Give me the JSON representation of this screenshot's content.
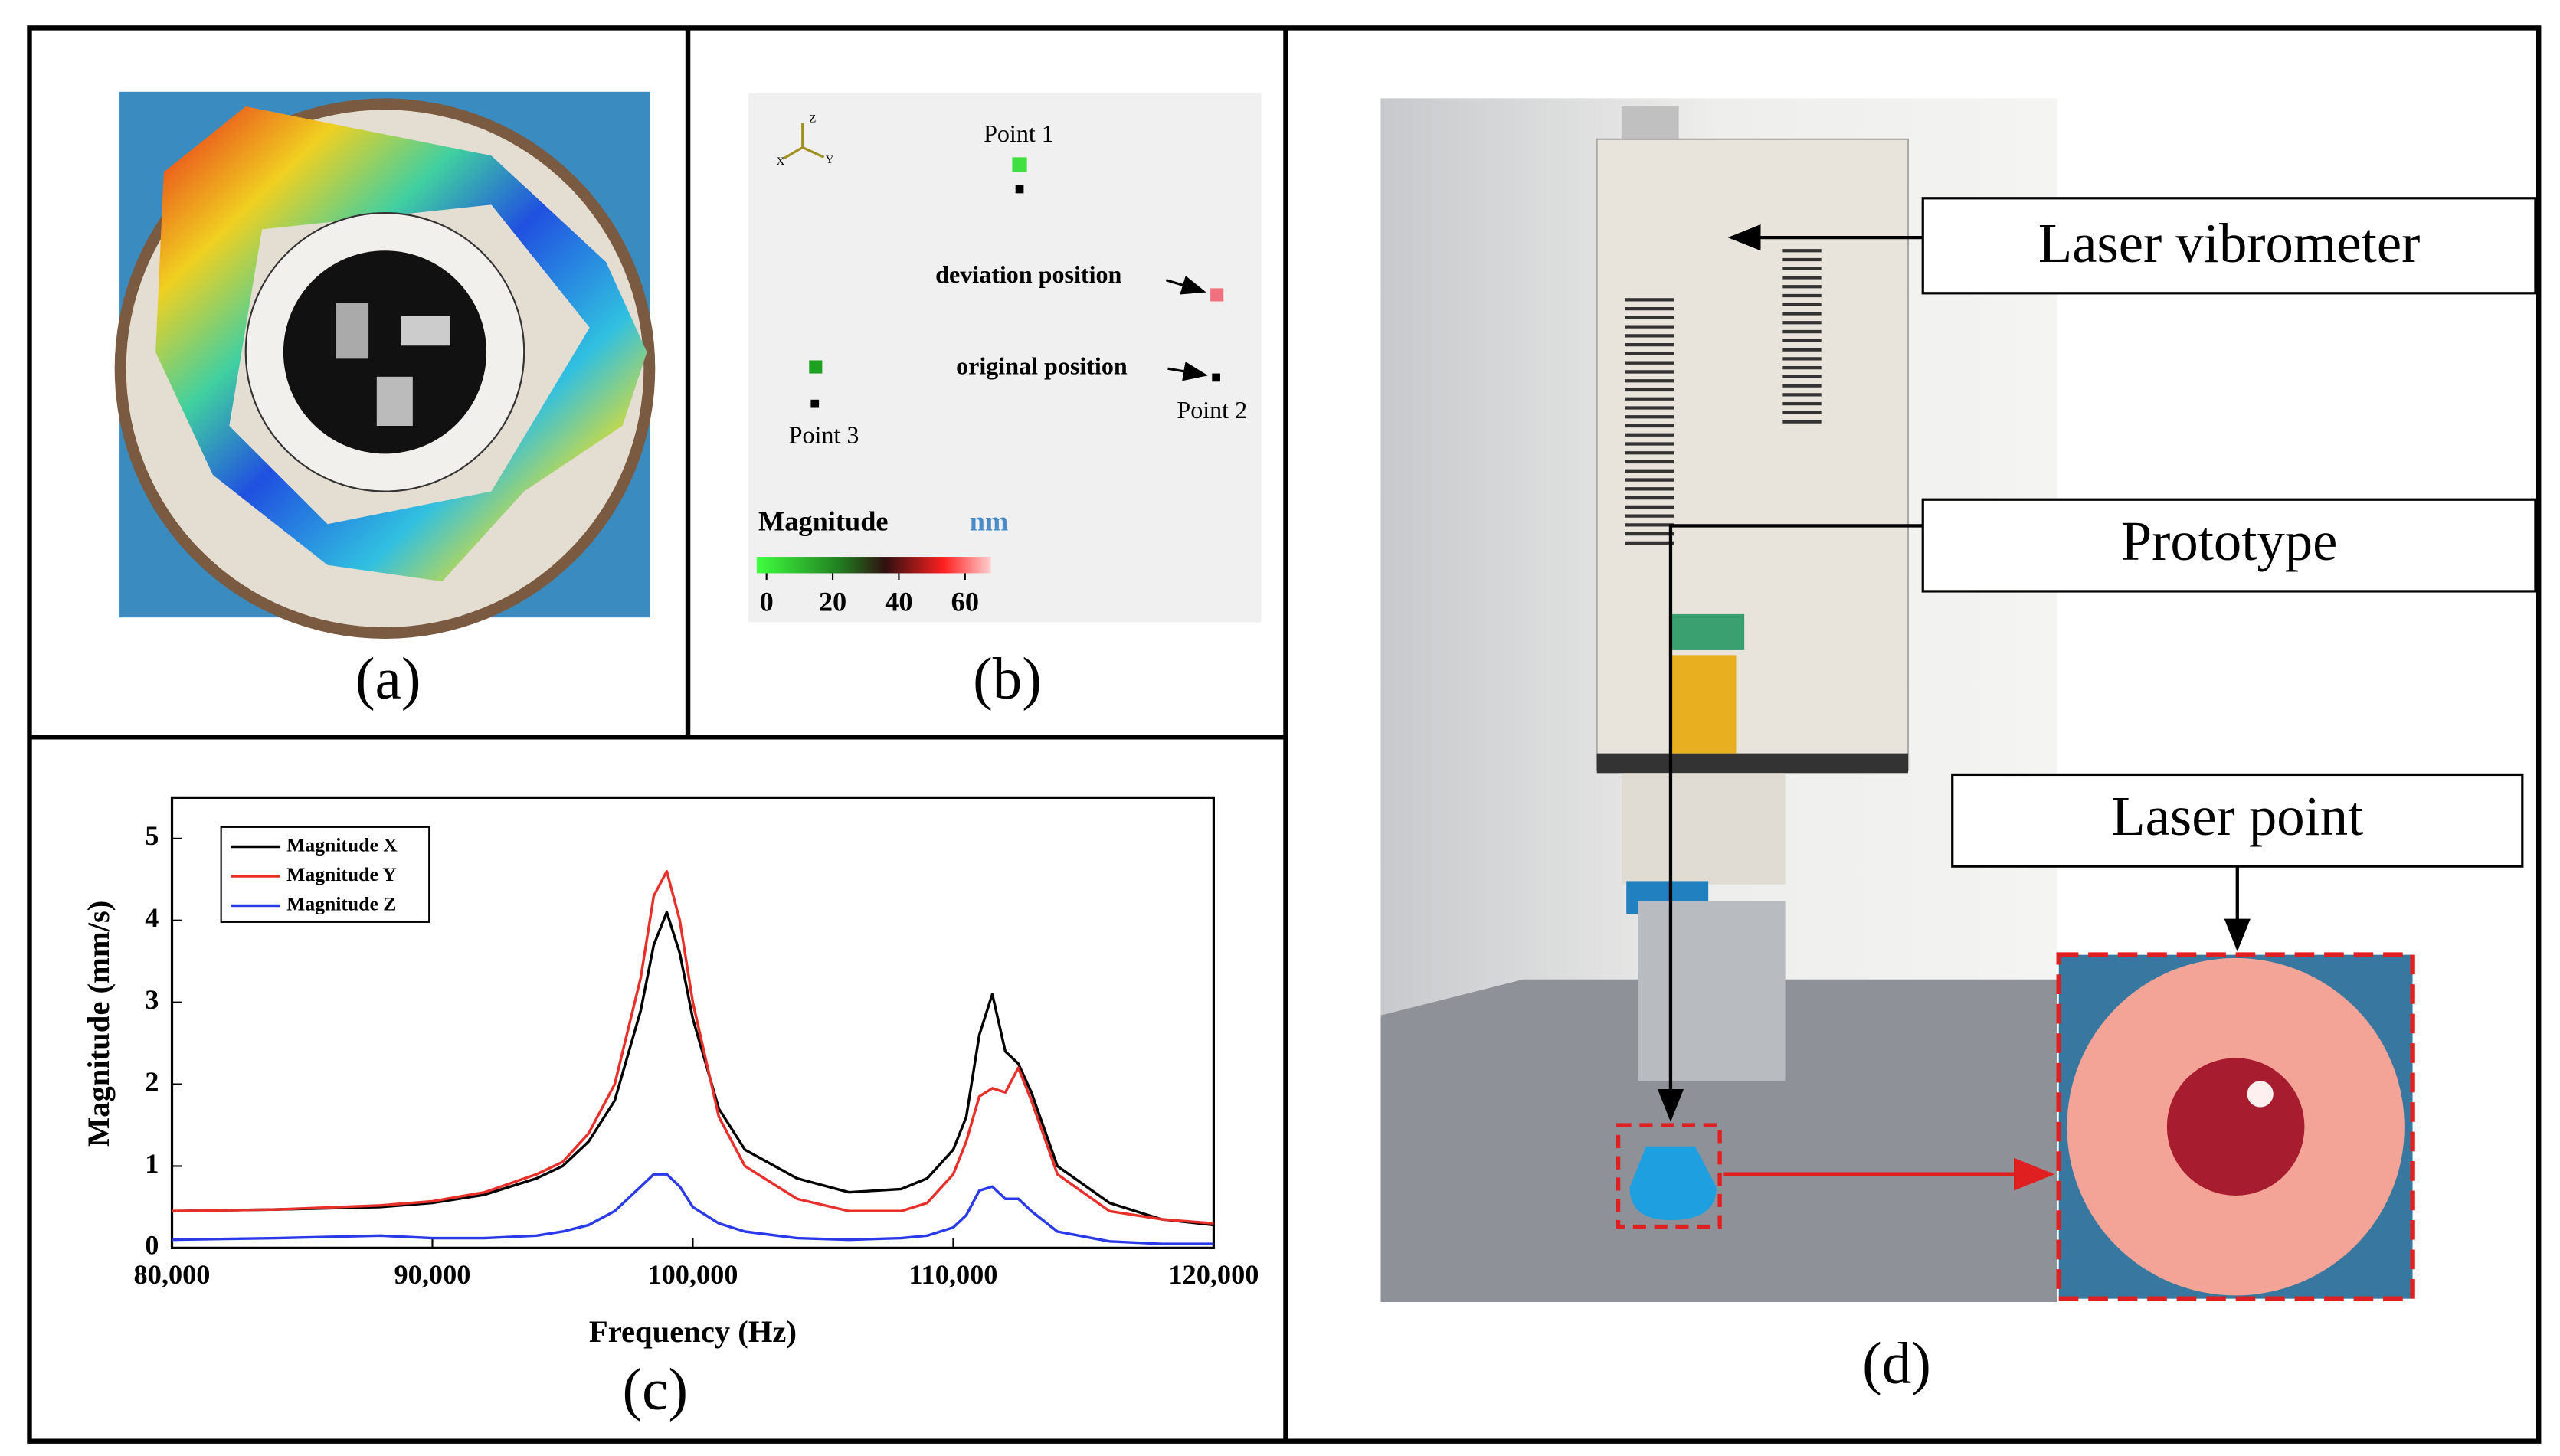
{
  "panel_a": {
    "label": "(a)"
  },
  "panel_b": {
    "label": "(b)",
    "triad": [
      "X",
      "Y",
      "Z"
    ],
    "point_1": "Point 1",
    "point_2": "Point 2",
    "point_3": "Point 3",
    "deviation": "deviation position",
    "original": "original position",
    "colorbar": {
      "title": "Magnitude",
      "unit": "nm",
      "ticks": [
        0,
        20,
        40,
        60
      ]
    }
  },
  "chart_data": {
    "type": "line",
    "panel_label": "(c)",
    "xlabel": "Frequency (Hz)",
    "ylabel": "Magnitude (mm/s)",
    "x": [
      80000,
      84000,
      88000,
      90000,
      92000,
      94000,
      95000,
      96000,
      97000,
      98000,
      98500,
      99000,
      99500,
      100000,
      101000,
      102000,
      104000,
      106000,
      108000,
      109000,
      110000,
      110500,
      111000,
      111500,
      112000,
      112500,
      113000,
      114000,
      116000,
      118000,
      120000
    ],
    "series": [
      {
        "name": "Magnitude X",
        "color": "#000000",
        "values": [
          0.45,
          0.47,
          0.5,
          0.55,
          0.65,
          0.85,
          1.0,
          1.3,
          1.8,
          2.9,
          3.7,
          4.1,
          3.6,
          2.8,
          1.7,
          1.2,
          0.85,
          0.68,
          0.72,
          0.85,
          1.2,
          1.6,
          2.6,
          3.1,
          2.4,
          2.25,
          1.9,
          1.0,
          0.55,
          0.35,
          0.28
        ]
      },
      {
        "name": "Magnitude Y",
        "color": "#e8302a",
        "values": [
          0.45,
          0.47,
          0.52,
          0.57,
          0.68,
          0.9,
          1.05,
          1.4,
          2.0,
          3.3,
          4.3,
          4.6,
          4.0,
          3.0,
          1.6,
          1.0,
          0.6,
          0.45,
          0.45,
          0.55,
          0.9,
          1.3,
          1.85,
          1.95,
          1.9,
          2.2,
          1.8,
          0.9,
          0.45,
          0.35,
          0.3
        ]
      },
      {
        "name": "Magnitude Z",
        "color": "#2a3ae8",
        "values": [
          0.1,
          0.12,
          0.15,
          0.12,
          0.12,
          0.15,
          0.2,
          0.28,
          0.45,
          0.75,
          0.9,
          0.9,
          0.75,
          0.5,
          0.3,
          0.2,
          0.12,
          0.1,
          0.12,
          0.15,
          0.25,
          0.4,
          0.7,
          0.75,
          0.6,
          0.6,
          0.45,
          0.2,
          0.08,
          0.05,
          0.05
        ]
      }
    ],
    "xlim": [
      80000,
      120000
    ],
    "xticks": [
      {
        "value": 80000,
        "label": "80,000"
      },
      {
        "value": 90000,
        "label": "90,000"
      },
      {
        "value": 100000,
        "label": "100,000"
      },
      {
        "value": 110000,
        "label": "110,000"
      },
      {
        "value": 120000,
        "label": "120,000"
      }
    ],
    "ylim": [
      0,
      5.5
    ],
    "yticks": [
      0,
      1,
      2,
      3,
      4,
      5
    ],
    "legend": "upper left"
  },
  "panel_d": {
    "label": "(d)",
    "laser_vibrometer": "Laser vibrometer",
    "prototype": "Prototype",
    "laser_point": "Laser point"
  }
}
